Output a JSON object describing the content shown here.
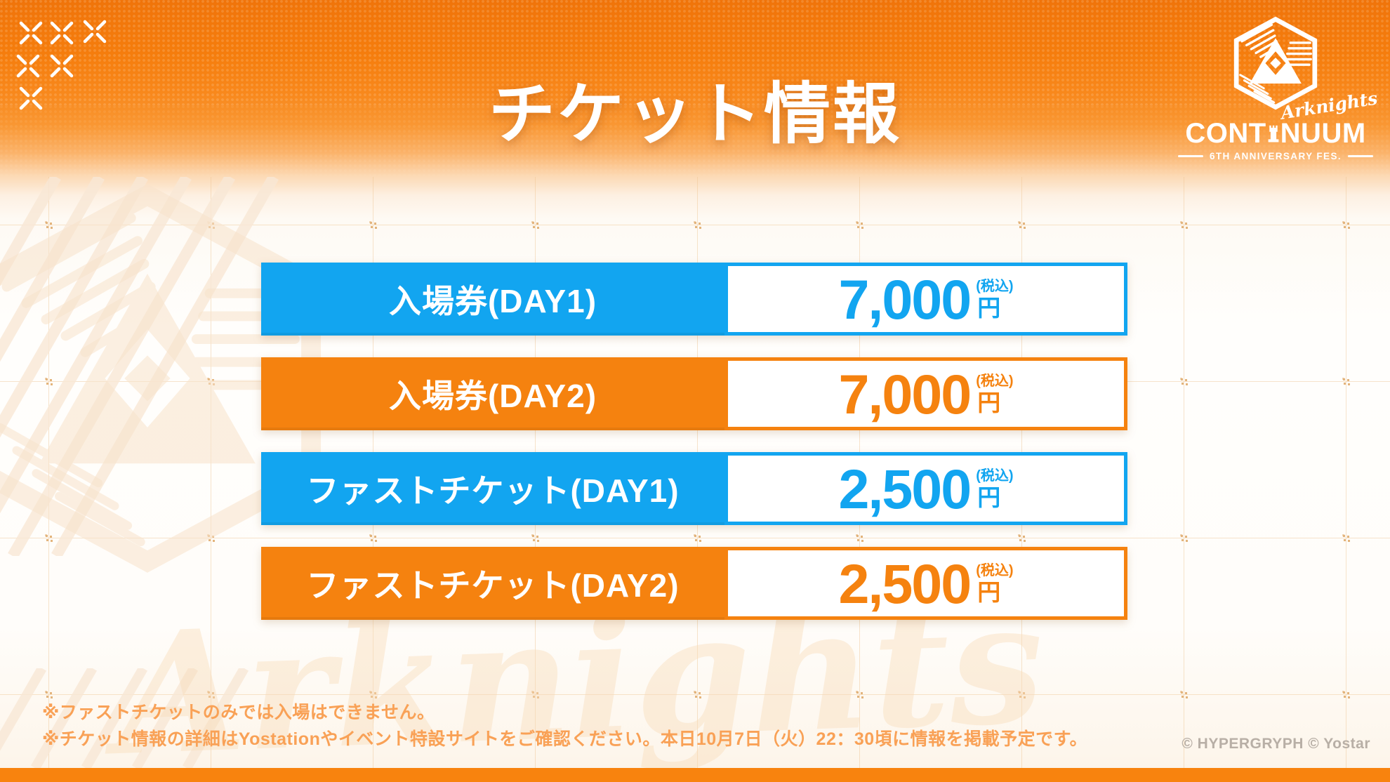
{
  "title": "チケット情報",
  "logo": {
    "brand_script": "Arknights",
    "event_name": "CONTINUUM",
    "event_name_left": "CONT",
    "event_name_right": "NUUM",
    "subtitle": "6TH ANNIVERSARY FES."
  },
  "tickets": {
    "rows": [
      {
        "label": "入場券(DAY1)",
        "price": "7,000",
        "tax_note": "(税込)",
        "unit": "円",
        "accent": "#12a5f0"
      },
      {
        "label": "入場券(DAY2)",
        "price": "7,000",
        "tax_note": "(税込)",
        "unit": "円",
        "accent": "#f5820f"
      },
      {
        "label": "ファストチケット(DAY1)",
        "price": "2,500",
        "tax_note": "(税込)",
        "unit": "円",
        "accent": "#12a5f0"
      },
      {
        "label": "ファストチケット(DAY2)",
        "price": "2,500",
        "tax_note": "(税込)",
        "unit": "円",
        "accent": "#f5820f"
      }
    ]
  },
  "notes": [
    "※ファストチケットのみでは入場はできません。",
    "※チケット情報の詳細はYostationやイベント特設サイトをご確認ください。本日10月7日（火）22：30頃に情報を掲載予定です。"
  ],
  "footer": {
    "copyright": "© HYPERGRYPH © Yostar"
  },
  "decor": {
    "watermark_script": "Arknights"
  },
  "colors": {
    "ticket_blue": "#12a5f0",
    "ticket_orange": "#f5820f",
    "header_orange": "#f57d0d",
    "note_orange": "#f9a156",
    "bottom_bar_orange": "#f8830e",
    "copyright_gray": "#b8afa6",
    "watermark_tint": "#f9e7d2"
  }
}
